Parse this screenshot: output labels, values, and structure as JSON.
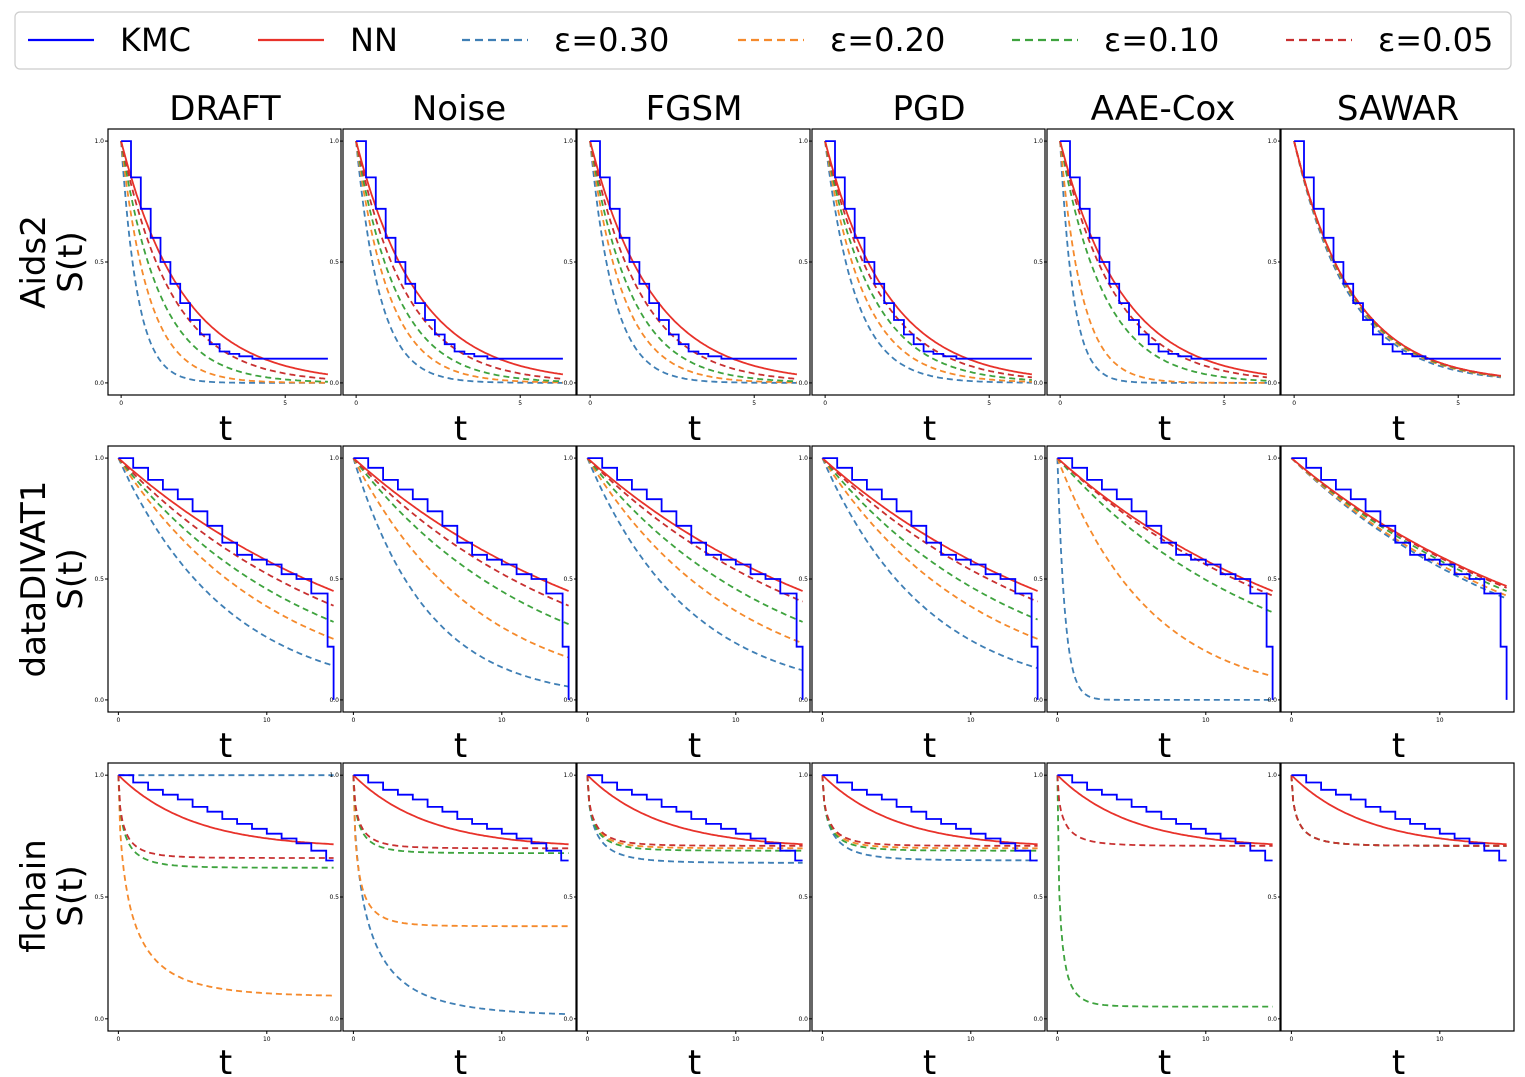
{
  "legend": {
    "items": [
      {
        "label": "KMC",
        "color": "#0000ff",
        "dash": false
      },
      {
        "label": "NN",
        "color": "#e8322a",
        "dash": false
      },
      {
        "label": "ε=0.30",
        "color": "#3f7fb5",
        "dash": true
      },
      {
        "label": "ε=0.20",
        "color": "#f58a2c",
        "dash": true
      },
      {
        "label": "ε=0.10",
        "color": "#3ea33e",
        "dash": true
      },
      {
        "label": "ε=0.05",
        "color": "#c83030",
        "dash": true
      }
    ]
  },
  "columns": [
    "DRAFT",
    "Noise",
    "FGSM",
    "PGD",
    "AAE-Cox",
    "SAWAR"
  ],
  "rows": [
    {
      "label": "Aids2",
      "ylabel": "S(t)",
      "xlabel": "t"
    },
    {
      "label": "dataDIVAT1",
      "ylabel": "S(t)",
      "xlabel": "t"
    },
    {
      "label": "flchain",
      "ylabel": "S(t)",
      "xlabel": "t"
    }
  ],
  "chart_data": [
    {
      "type": "line",
      "dataset": "Aids2",
      "xlim": [
        -0.4,
        6.7
      ],
      "ylim": [
        -0.05,
        1.05
      ],
      "xticks": [
        0,
        5
      ],
      "yticks": [
        0.0,
        0.5,
        1.0
      ],
      "tick_labels_y": [
        "0.0",
        "0.5",
        "1.0"
      ],
      "tmax": 6.3,
      "kmc": {
        "x": [
          0,
          0.3,
          0.6,
          0.9,
          1.2,
          1.5,
          1.8,
          2.1,
          2.4,
          2.7,
          3.0,
          3.3,
          3.6,
          4.0,
          4.5,
          5.0,
          5.5,
          6.3
        ],
        "y": [
          1.0,
          0.85,
          0.72,
          0.6,
          0.5,
          0.41,
          0.33,
          0.26,
          0.2,
          0.16,
          0.13,
          0.12,
          0.11,
          0.1,
          0.1,
          0.1,
          0.1,
          0.1
        ]
      },
      "nn_rate": 0.53,
      "curve_family": "exponential",
      "eps_rates": {
        "DRAFT": [
          2.0,
          1.2,
          0.85,
          0.65
        ],
        "Noise": [
          1.4,
          1.0,
          0.8,
          0.65
        ],
        "FGSM": [
          1.4,
          1.0,
          0.8,
          0.65
        ],
        "PGD": [
          1.1,
          0.85,
          0.7,
          0.6
        ],
        "AAE-Cox": [
          2.5,
          1.5,
          0.75,
          0.6
        ],
        "SAWAR": [
          0.6,
          0.58,
          0.57,
          0.56
        ]
      },
      "sawar_nn_rate": 0.56
    },
    {
      "type": "line",
      "dataset": "dataDIVAT1",
      "xlim": [
        -0.7,
        15.0
      ],
      "ylim": [
        -0.05,
        1.05
      ],
      "xticks": [
        0,
        10
      ],
      "yticks": [
        0.0,
        0.5,
        1.0
      ],
      "tick_labels_y": [
        "0.0",
        "0.5",
        "1.0"
      ],
      "tmax": 14.5,
      "kmc": {
        "x": [
          0,
          1,
          2,
          3,
          4,
          5,
          6,
          7,
          8,
          9,
          10,
          11,
          12,
          13,
          14,
          14.1,
          14.5,
          14.5
        ],
        "y": [
          1.0,
          0.96,
          0.91,
          0.87,
          0.83,
          0.78,
          0.72,
          0.65,
          0.6,
          0.58,
          0.56,
          0.52,
          0.5,
          0.44,
          0.44,
          0.22,
          0.22,
          0.0
        ]
      },
      "nn_rate": 0.055,
      "curve_family": "exponential",
      "eps_rates": {
        "DRAFT": [
          0.135,
          0.095,
          0.078,
          0.065
        ],
        "Noise": [
          0.2,
          0.12,
          0.08,
          0.065
        ],
        "FGSM": [
          0.145,
          0.1,
          0.078,
          0.062
        ],
        "PGD": [
          0.14,
          0.095,
          0.076,
          0.062
        ],
        "AAE-Cox": [
          2.0,
          0.16,
          0.07,
          0.058
        ],
        "SAWAR": [
          0.06,
          0.058,
          0.055,
          0.053
        ]
      },
      "sawar_nn_rate": 0.052
    },
    {
      "type": "line",
      "dataset": "flchain",
      "xlim": [
        -0.7,
        15.0
      ],
      "ylim": [
        -0.05,
        1.05
      ],
      "xticks": [
        0,
        10
      ],
      "yticks": [
        0.0,
        0.5,
        1.0
      ],
      "tick_labels_y": [
        "0.0",
        "0.5",
        "1.0"
      ],
      "tmax": 14.5,
      "kmc": {
        "x": [
          0,
          1,
          2,
          3,
          4,
          5,
          6,
          7,
          8,
          9,
          10,
          11,
          12,
          13,
          14,
          14.5
        ],
        "y": [
          1.0,
          0.97,
          0.94,
          0.92,
          0.9,
          0.87,
          0.85,
          0.82,
          0.8,
          0.78,
          0.76,
          0.74,
          0.72,
          0.69,
          0.65,
          0.65
        ]
      },
      "nn_plateau": 0.7,
      "curve_family": "plateau",
      "eps_curves": {
        "DRAFT": [
          [
            0.0,
            0.0,
            0.02
          ],
          [
            0.09,
            0.5,
            0.25
          ],
          [
            0.62,
            0.8,
            0.25
          ],
          [
            0.66,
            0.85,
            0.25
          ]
        ],
        "Noise": [
          [
            0.01,
            0.1,
            0.02
          ],
          [
            0.38,
            0.9,
            0.25
          ],
          [
            0.68,
            0.85,
            0.25
          ],
          [
            0.7,
            0.85,
            0.25
          ]
        ],
        "FGSM": [
          [
            0.64,
            0.4,
            0.1
          ],
          [
            0.7,
            0.8,
            0.25
          ],
          [
            0.69,
            0.8,
            0.25
          ],
          [
            0.71,
            0.8,
            0.25
          ]
        ],
        "PGD": [
          [
            0.65,
            0.5,
            0.15
          ],
          [
            0.7,
            0.8,
            0.25
          ],
          [
            0.69,
            0.8,
            0.25
          ],
          [
            0.71,
            0.8,
            0.25
          ]
        ],
        "AAE-Cox": [
          null,
          null,
          [
            0.05,
            1.2,
            0.25
          ],
          [
            0.71,
            0.8,
            0.25
          ]
        ],
        "SAWAR": [
          [
            0.71,
            0.8,
            0.25
          ],
          [
            0.71,
            0.8,
            0.25
          ],
          [
            0.71,
            0.8,
            0.25
          ],
          [
            0.71,
            0.8,
            0.25
          ]
        ]
      }
    }
  ]
}
